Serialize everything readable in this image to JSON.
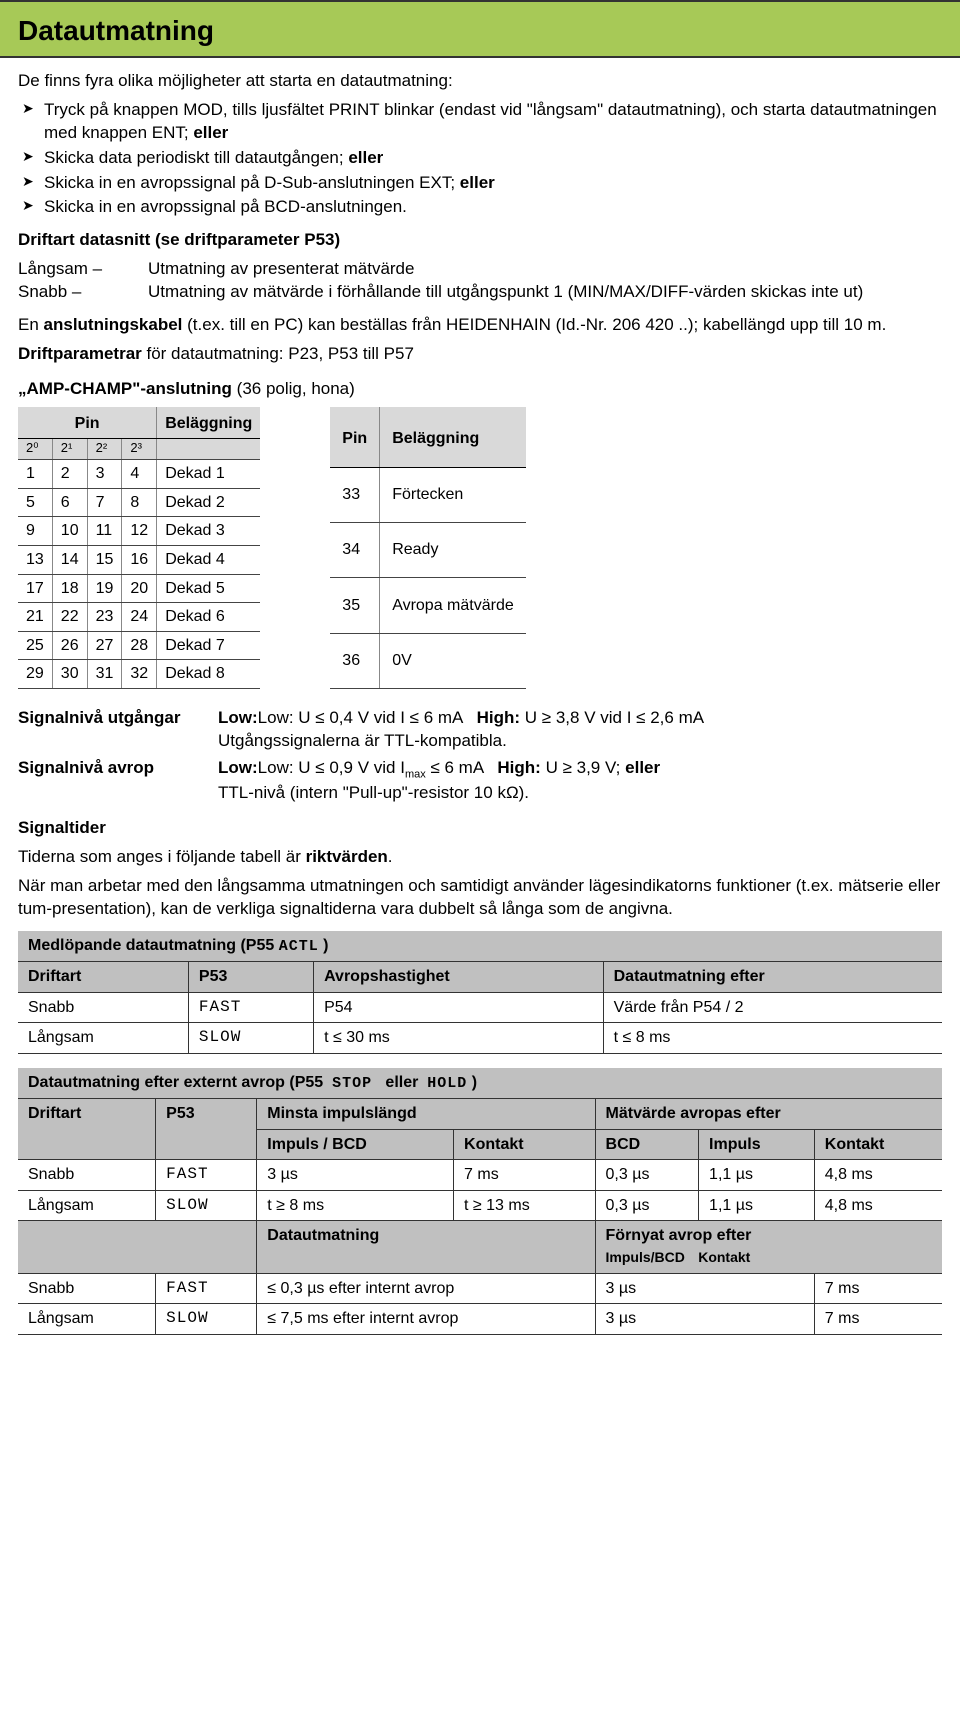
{
  "header": {
    "title": "Datautmatning"
  },
  "intro": "De finns fyra olika möjligheter att starta en datautmatning:",
  "bullets": [
    {
      "pre": "Tryck på knappen MOD, tills ljusfältet PRINT blinkar (endast vid \"långsam\" datautmatning), och starta datautmatningen med knappen ENT; ",
      "bold": "eller"
    },
    {
      "pre": "Skicka data periodiskt till datautgången; ",
      "bold": "eller"
    },
    {
      "pre": "Skicka in en avropssignal på D-Sub-anslutningen EXT; ",
      "bold": "eller"
    },
    {
      "pre": "Skicka in en avropssignal på BCD-anslutningen.",
      "bold": ""
    }
  ],
  "driftart": {
    "head": "Driftart datasnitt (se driftparameter P53)",
    "rows": [
      {
        "k": "Långsam –",
        "v": "Utmatning av presenterat mätvärde"
      },
      {
        "k": "Snabb –",
        "v": "Utmatning av mätvärde i förhållande till utgångspunkt 1 (MIN/MAX/DIFF-värden skickas inte ut)"
      }
    ]
  },
  "cable": {
    "p1a": "En ",
    "p1b": "anslutningskabel",
    "p1c": " (t.ex. till en PC) kan beställas från HEIDENHAIN (Id.-Nr. 206 420 ..); kabellängd upp till 10 m.",
    "p2a": "Driftparametrar",
    "p2b": " för datautmatning: P23, P53 till P57"
  },
  "conn": {
    "title": "„AMP-CHAMP\"-anslutning",
    "sub": "  (36 polig, hona)"
  },
  "table1": {
    "head_pin": "Pin",
    "head_bel": "Beläggning",
    "subs": [
      "2⁰",
      "2¹",
      "2²",
      "2³"
    ],
    "rows": [
      [
        "1",
        "2",
        "3",
        "4",
        "Dekad 1"
      ],
      [
        "5",
        "6",
        "7",
        "8",
        "Dekad 2"
      ],
      [
        "9",
        "10",
        "11",
        "12",
        "Dekad 3"
      ],
      [
        "13",
        "14",
        "15",
        "16",
        "Dekad 4"
      ],
      [
        "17",
        "18",
        "19",
        "20",
        "Dekad 5"
      ],
      [
        "21",
        "22",
        "23",
        "24",
        "Dekad 6"
      ],
      [
        "25",
        "26",
        "27",
        "28",
        "Dekad 7"
      ],
      [
        "29",
        "30",
        "31",
        "32",
        "Dekad 8"
      ]
    ]
  },
  "table2": {
    "head_pin": "Pin",
    "head_bel": "Beläggning",
    "rows": [
      [
        "33",
        "Förtecken"
      ],
      [
        "34",
        "Ready"
      ],
      [
        "35",
        "Avropa mätvärde"
      ],
      [
        "36",
        "0V"
      ]
    ]
  },
  "signal": {
    "out_label": "Signalnivå utgångar",
    "out_text1": "Low: U ≤ 0,4 V vid I ≤ 6 mA   ",
    "out_high": "High:",
    "out_text2": " U ≥ 3,8 V vid I ≤ 2,6 mA",
    "out_text3": "Utgångssignalerna är TTL-kompatibla.",
    "avr_label": "Signalnivå avrop",
    "avr_text1": "Low: U ≤ 0,9 V vid I",
    "avr_sub": "max",
    "avr_text1b": " ≤ 6 mA   ",
    "avr_high": "High:",
    "avr_text2": " U ≥ 3,9 V; ",
    "avr_eller": "eller",
    "avr_text3": "TTL-nivå (intern \"Pull-up\"-resistor 10 kΩ)."
  },
  "signaltider": {
    "head": "Signaltider",
    "p1": "Tiderna som anges i följande tabell är ",
    "p1b": "riktvärden",
    "p1c": ".",
    "p2": "När man arbetar med den långsamma utmatningen och samtidigt använder lägesindikatorns funktioner (t.ex. mätserie eller tum-presentation), kan de verkliga signaltiderna vara dubbelt så långa som de angivna."
  },
  "timing1": {
    "title_a": "Medlöpande datautmatning (P55 ",
    "title_seg": "ACTL",
    "title_b": " )",
    "h1": "Driftart",
    "h2": "P53",
    "h3": "Avropshastighet",
    "h4": "Datautmatning efter",
    "rows": [
      {
        "a": "Snabb",
        "b_seg": "FAST",
        "c": "P54",
        "d": "Värde från P54 / 2"
      },
      {
        "a": "Långsam",
        "b_seg": "SLOW",
        "c": "t ≤ 30 ms",
        "d": "t ≤ 8 ms"
      }
    ]
  },
  "timing2": {
    "title_a": "Datautmatning efter externt avrop (P55  ",
    "title_seg1": "STOP",
    "title_mid": "   eller  ",
    "title_seg2": "HOLD",
    "title_b": " )",
    "h1": "Driftart",
    "h2": "P53",
    "h3": "Minsta impulslängd",
    "h3a": "Impuls / BCD",
    "h3b": "Kontakt",
    "h4": "Mätvärde avropas efter",
    "h4a": "BCD",
    "h4b": "Impuls",
    "h4c": "Kontakt",
    "rows": [
      {
        "a": "Snabb",
        "b_seg": "FAST",
        "c1": "3 µs",
        "c2": "7 ms",
        "d1": "0,3 µs",
        "d2": "1,1 µs",
        "d3": "4,8 ms"
      },
      {
        "a": "Långsam",
        "b_seg": "SLOW",
        "c1": "t ≥ 8 ms",
        "c2": "t ≥ 13 ms",
        "d1": "0,3 µs",
        "d2": "1,1 µs",
        "d3": "4,8 ms"
      }
    ],
    "mid_h1": "Datautmatning",
    "mid_h2": "Förnyat avrop efter",
    "mid_s1": "Impuls/BCD",
    "mid_s2": "Kontakt",
    "rows2": [
      {
        "a": "Snabb",
        "b_seg": "FAST",
        "c": "≤ 0,3 µs efter internt avrop",
        "d": "3 µs",
        "e": "7 ms"
      },
      {
        "a": "Långsam",
        "b_seg": "SLOW",
        "c": "≤ 7,5 ms efter internt avrop",
        "d": "3 µs",
        "e": "7 ms"
      }
    ]
  },
  "colors": {
    "header_bg": "#a7c957",
    "table_hd": "#d9d9d9"
  }
}
